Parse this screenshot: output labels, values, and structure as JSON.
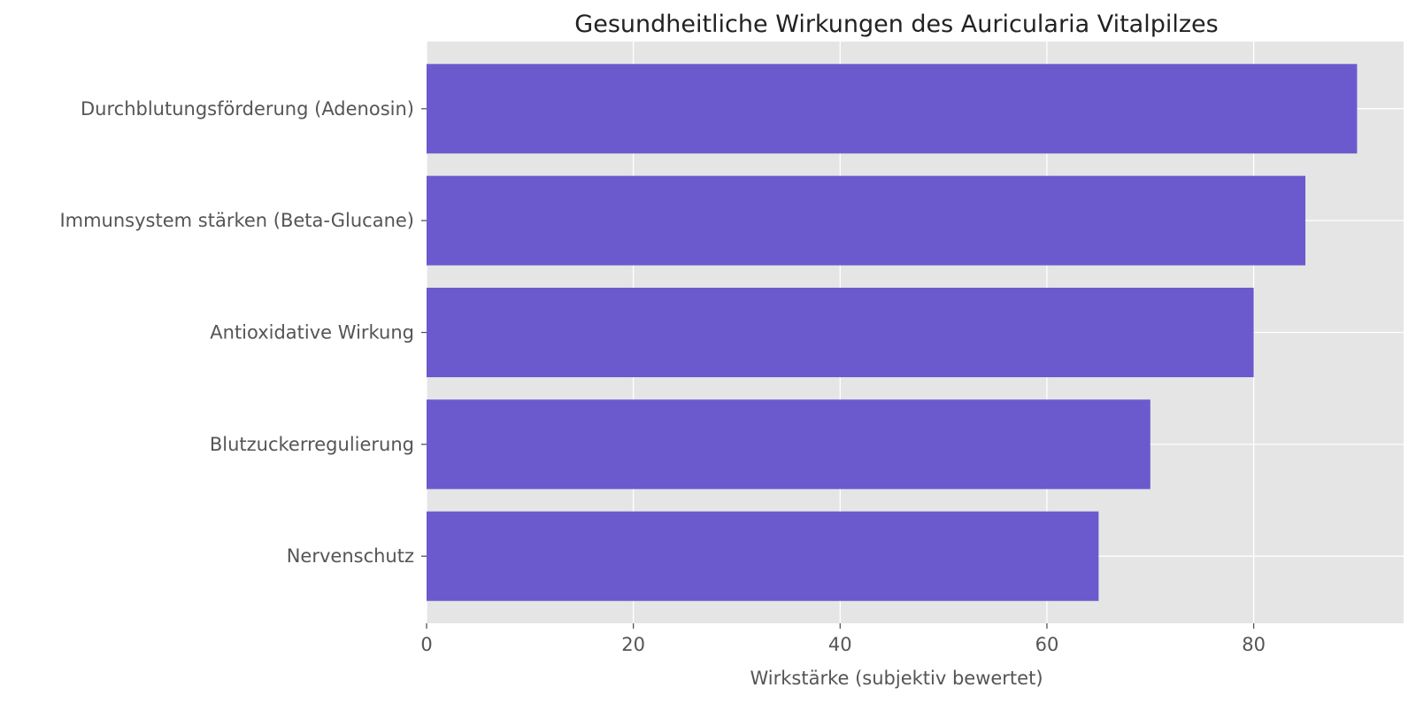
{
  "chart_data": {
    "type": "bar",
    "orientation": "horizontal",
    "title": "Gesundheitliche Wirkungen des Auricularia Vitalpilzes",
    "xlabel": "Wirkstärke (subjektiv bewertet)",
    "ylabel": "",
    "categories": [
      "Durchblutungsförderung (Adenosin)",
      "Immunsystem stärken (Beta-Glucane)",
      "Antioxidative Wirkung",
      "Blutzuckerregulierung",
      "Nervenschutz"
    ],
    "values": [
      90,
      85,
      80,
      70,
      65
    ],
    "xlim": [
      0,
      94.5
    ],
    "xticks": [
      0,
      20,
      40,
      60,
      80
    ],
    "grid": true,
    "colors": {
      "bar": "#6a5acd",
      "plot_background": "#e5e5e5",
      "grid": "#ffffff"
    }
  }
}
